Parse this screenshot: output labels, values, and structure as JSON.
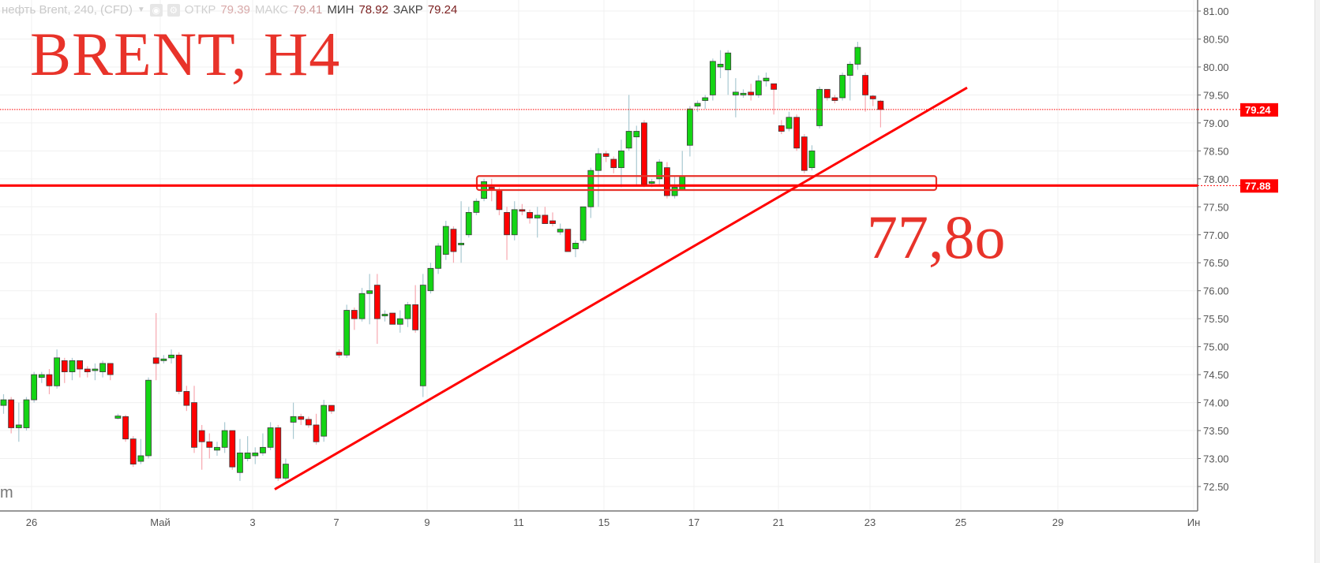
{
  "header": {
    "symbol": "нефть Brent, 240, (CFD)",
    "dropdown_icon": "caret-down-icon",
    "icons": [
      "eye-icon",
      "gear-icon"
    ],
    "open_label": "ОТКР",
    "open_value": "79.39",
    "high_label": "МАКС",
    "high_value": "79.41",
    "low_label": "МИН",
    "low_value": "78.92",
    "close_label": "ЗАКР",
    "close_value": "79.24"
  },
  "annotations": {
    "title": "BRENT, H4",
    "level_text": "77,8o",
    "watermark": "m",
    "color": "#e8332a"
  },
  "chart_data": {
    "type": "candlestick",
    "ylim": [
      72.0,
      81.1
    ],
    "y_ticks": [
      "81.00",
      "80.50",
      "80.00",
      "79.50",
      "79.00",
      "78.50",
      "78.00",
      "77.50",
      "77.00",
      "76.50",
      "76.00",
      "75.50",
      "75.00",
      "74.50",
      "74.00",
      "73.50",
      "73.00",
      "72.50"
    ],
    "x_ticks": [
      "26",
      "Май",
      "3",
      "7",
      "9",
      "11",
      "15",
      "17",
      "21",
      "23",
      "25",
      "29",
      "Ин"
    ],
    "grid": true,
    "colors": {
      "up": "#14d414",
      "down": "#ff0000",
      "up_wick": "#a9c9d2",
      "down_wick": "#f7a8b0",
      "border": "#3b3b3b"
    },
    "last_price": {
      "value": 79.24,
      "label": "79.24",
      "style": "dotted",
      "color": "#ff0000"
    },
    "horizontal_level": {
      "value": 77.88,
      "label": "77.88",
      "color": "#ff0000"
    },
    "zone_box": {
      "top": 78.05,
      "bottom": 77.8,
      "color": "#e8332a"
    },
    "trendline": {
      "from": 72.45,
      "to": 79.63,
      "color": "#ff0000"
    },
    "candles_ohlc": [
      [
        73.95,
        74.15,
        73.8,
        74.05
      ],
      [
        74.05,
        74.1,
        73.45,
        73.55
      ],
      [
        73.55,
        74.0,
        73.3,
        73.6
      ],
      [
        73.55,
        74.1,
        73.5,
        74.05
      ],
      [
        74.05,
        74.55,
        74.0,
        74.5
      ],
      [
        74.45,
        74.55,
        74.35,
        74.5
      ],
      [
        74.5,
        74.6,
        74.15,
        74.3
      ],
      [
        74.3,
        74.95,
        74.25,
        74.8
      ],
      [
        74.75,
        74.8,
        74.35,
        74.55
      ],
      [
        74.55,
        74.8,
        74.4,
        74.75
      ],
      [
        74.75,
        74.75,
        74.45,
        74.6
      ],
      [
        74.6,
        74.65,
        74.45,
        74.55
      ],
      [
        74.58,
        74.7,
        74.4,
        74.6
      ],
      [
        74.55,
        74.75,
        74.45,
        74.7
      ],
      [
        74.7,
        74.7,
        74.4,
        74.5
      ],
      [
        73.72,
        73.8,
        73.7,
        73.76
      ],
      [
        73.75,
        73.78,
        73.3,
        73.35
      ],
      [
        73.35,
        73.4,
        72.85,
        72.9
      ],
      [
        72.95,
        73.35,
        72.9,
        73.05
      ],
      [
        73.05,
        74.45,
        73.0,
        74.4
      ],
      [
        74.8,
        75.6,
        74.4,
        74.7
      ],
      [
        74.75,
        74.85,
        74.7,
        74.78
      ],
      [
        74.8,
        74.95,
        74.7,
        74.85
      ],
      [
        74.85,
        74.9,
        74.15,
        74.2
      ],
      [
        74.2,
        74.3,
        73.85,
        73.95
      ],
      [
        74.0,
        74.3,
        73.1,
        73.2
      ],
      [
        73.5,
        73.6,
        72.8,
        73.3
      ],
      [
        73.3,
        73.45,
        73.0,
        73.2
      ],
      [
        73.15,
        73.3,
        73.05,
        73.2
      ],
      [
        73.2,
        73.65,
        73.1,
        73.5
      ],
      [
        73.5,
        73.5,
        72.8,
        72.85
      ],
      [
        72.75,
        73.35,
        72.6,
        73.1
      ],
      [
        73.0,
        73.4,
        72.95,
        73.1
      ],
      [
        73.05,
        73.2,
        72.9,
        73.1
      ],
      [
        73.1,
        73.45,
        73.05,
        73.2
      ],
      [
        73.2,
        73.65,
        73.15,
        73.55
      ],
      [
        73.55,
        73.6,
        72.6,
        72.65
      ],
      [
        72.65,
        73.0,
        72.6,
        72.9
      ],
      [
        73.65,
        74.0,
        73.35,
        73.75
      ],
      [
        73.75,
        73.8,
        73.6,
        73.7
      ],
      [
        73.7,
        73.75,
        73.55,
        73.6
      ],
      [
        73.6,
        73.8,
        73.25,
        73.3
      ],
      [
        73.4,
        74.05,
        73.3,
        73.95
      ],
      [
        73.95,
        73.95,
        73.8,
        73.85
      ],
      [
        74.9,
        74.95,
        74.8,
        74.85
      ],
      [
        74.85,
        75.75,
        74.8,
        75.65
      ],
      [
        75.65,
        75.7,
        75.3,
        75.5
      ],
      [
        75.5,
        76.05,
        75.45,
        75.95
      ],
      [
        75.95,
        76.3,
        75.4,
        76.0
      ],
      [
        76.1,
        76.3,
        75.05,
        75.5
      ],
      [
        75.55,
        75.65,
        75.45,
        75.58
      ],
      [
        75.6,
        75.6,
        75.4,
        75.4
      ],
      [
        75.4,
        75.65,
        75.25,
        75.5
      ],
      [
        75.5,
        75.8,
        75.35,
        75.75
      ],
      [
        75.75,
        76.1,
        75.25,
        75.3
      ],
      [
        74.3,
        76.3,
        74.1,
        76.1
      ],
      [
        76.0,
        76.5,
        75.95,
        76.4
      ],
      [
        76.4,
        76.85,
        76.3,
        76.8
      ],
      [
        76.65,
        77.25,
        76.55,
        77.15
      ],
      [
        77.1,
        77.15,
        76.5,
        76.7
      ],
      [
        76.82,
        77.6,
        76.5,
        76.85
      ],
      [
        77.0,
        77.5,
        76.95,
        77.4
      ],
      [
        77.4,
        77.65,
        77.35,
        77.6
      ],
      [
        77.65,
        78.0,
        77.6,
        77.95
      ],
      [
        77.85,
        78.0,
        77.6,
        77.8
      ],
      [
        77.8,
        77.85,
        77.35,
        77.45
      ],
      [
        77.4,
        77.5,
        76.55,
        77.0
      ],
      [
        77.0,
        77.6,
        76.9,
        77.45
      ],
      [
        77.45,
        77.55,
        77.35,
        77.43
      ],
      [
        77.4,
        77.45,
        77.2,
        77.3
      ],
      [
        77.3,
        77.5,
        76.95,
        77.35
      ],
      [
        77.35,
        77.5,
        77.2,
        77.2
      ],
      [
        77.25,
        77.4,
        77.15,
        77.2
      ],
      [
        77.05,
        77.2,
        77.0,
        77.1
      ],
      [
        77.1,
        77.1,
        76.7,
        76.7
      ],
      [
        76.75,
        76.9,
        76.6,
        76.85
      ],
      [
        76.9,
        77.5,
        76.85,
        77.5
      ],
      [
        77.5,
        78.2,
        77.3,
        78.15
      ],
      [
        78.15,
        78.55,
        77.5,
        78.45
      ],
      [
        78.45,
        78.5,
        78.3,
        78.4
      ],
      [
        78.35,
        78.4,
        78.1,
        78.2
      ],
      [
        78.2,
        78.7,
        77.85,
        78.5
      ],
      [
        78.55,
        79.5,
        78.5,
        78.85
      ],
      [
        78.75,
        78.95,
        77.9,
        78.85
      ],
      [
        79.0,
        79.05,
        77.85,
        77.9
      ],
      [
        77.92,
        78.0,
        77.85,
        77.95
      ],
      [
        78.0,
        78.35,
        77.9,
        78.3
      ],
      [
        78.2,
        78.3,
        77.65,
        77.7
      ],
      [
        77.7,
        78.05,
        77.65,
        77.85
      ],
      [
        77.8,
        78.5,
        77.8,
        78.05
      ],
      [
        78.6,
        79.3,
        78.4,
        79.25
      ],
      [
        79.3,
        79.4,
        79.2,
        79.35
      ],
      [
        79.4,
        79.5,
        79.25,
        79.45
      ],
      [
        79.5,
        80.15,
        79.4,
        80.1
      ],
      [
        80.0,
        80.3,
        79.8,
        80.05
      ],
      [
        79.95,
        80.3,
        79.5,
        80.25
      ],
      [
        79.5,
        79.8,
        79.1,
        79.55
      ],
      [
        79.5,
        79.6,
        79.45,
        79.53
      ],
      [
        79.55,
        79.7,
        79.4,
        79.5
      ],
      [
        79.5,
        79.85,
        79.45,
        79.75
      ],
      [
        79.75,
        79.9,
        79.65,
        79.8
      ],
      [
        79.7,
        79.7,
        79.15,
        79.6
      ],
      [
        78.95,
        79.05,
        78.8,
        78.85
      ],
      [
        78.9,
        79.2,
        78.85,
        79.1
      ],
      [
        79.1,
        79.15,
        78.5,
        78.55
      ],
      [
        78.75,
        78.8,
        78.1,
        78.15
      ],
      [
        78.2,
        78.6,
        78.15,
        78.5
      ],
      [
        78.95,
        79.65,
        78.9,
        79.6
      ],
      [
        79.6,
        79.6,
        79.4,
        79.45
      ],
      [
        79.45,
        79.5,
        79.35,
        79.4
      ],
      [
        79.45,
        79.9,
        79.4,
        79.85
      ],
      [
        79.85,
        80.1,
        79.4,
        80.05
      ],
      [
        80.05,
        80.45,
        79.95,
        80.35
      ],
      [
        79.85,
        79.9,
        79.2,
        79.5
      ],
      [
        79.48,
        79.5,
        79.3,
        79.43
      ],
      [
        79.39,
        79.41,
        78.92,
        79.24
      ]
    ]
  }
}
